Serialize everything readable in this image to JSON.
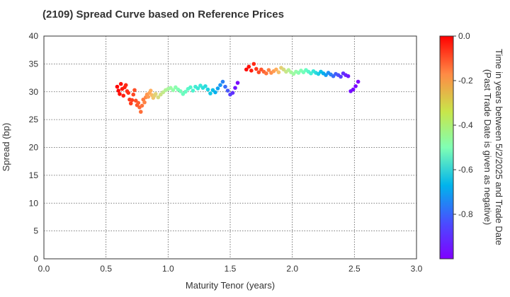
{
  "chart_data": {
    "type": "scatter",
    "title": "(2109)   Spread Curve based on Reference Prices",
    "xlabel": "Maturity Tenor (years)",
    "ylabel": "Spread (bp)",
    "xlim": [
      0.0,
      3.0
    ],
    "ylim": [
      0,
      40
    ],
    "xticks": [
      "0.0",
      "0.5",
      "1.0",
      "1.5",
      "2.0",
      "2.5",
      "3.0"
    ],
    "yticks": [
      "0",
      "5",
      "10",
      "15",
      "20",
      "25",
      "30",
      "35",
      "40"
    ],
    "grid": true,
    "colorbar": {
      "label_line1": "Time in years between 5/2/2025 and Trade Date",
      "label_line2": "(Past Trade Date is given as negative)",
      "range": [
        -1.0,
        0.0
      ],
      "ticks": [
        "0.0",
        "-0.2",
        "-0.4",
        "-0.6",
        "-0.8"
      ],
      "colormap": "rainbow"
    },
    "series": [
      {
        "points": [
          [
            0.59,
            30.9,
            0.0
          ],
          [
            0.6,
            30.2,
            -0.01
          ],
          [
            0.61,
            29.6,
            -0.02
          ],
          [
            0.62,
            31.4,
            -0.02
          ],
          [
            0.63,
            30.5,
            -0.03
          ],
          [
            0.64,
            29.3,
            -0.04
          ],
          [
            0.65,
            30.8,
            -0.04
          ],
          [
            0.66,
            31.2,
            -0.05
          ],
          [
            0.67,
            30.1,
            -0.06
          ],
          [
            0.68,
            29.8,
            -0.06
          ],
          [
            0.69,
            28.6,
            -0.07
          ],
          [
            0.7,
            27.9,
            -0.08
          ],
          [
            0.71,
            28.5,
            -0.08
          ],
          [
            0.72,
            29.5,
            -0.09
          ],
          [
            0.73,
            30.3,
            -0.1
          ],
          [
            0.74,
            28.4,
            -0.1
          ],
          [
            0.75,
            27.6,
            -0.11
          ],
          [
            0.76,
            28.0,
            -0.12
          ],
          [
            0.77,
            27.2,
            -0.13
          ],
          [
            0.78,
            26.4,
            -0.14
          ],
          [
            0.79,
            27.5,
            -0.15
          ],
          [
            0.8,
            28.6,
            -0.16
          ],
          [
            0.81,
            28.1,
            -0.17
          ],
          [
            0.82,
            29.0,
            -0.18
          ],
          [
            0.83,
            29.5,
            -0.2
          ],
          [
            0.84,
            29.1,
            -0.21
          ],
          [
            0.85,
            29.8,
            -0.22
          ],
          [
            0.86,
            30.2,
            -0.24
          ],
          [
            0.87,
            29.4,
            -0.26
          ],
          [
            0.88,
            28.9,
            -0.28
          ],
          [
            0.89,
            29.3,
            -0.3
          ],
          [
            0.9,
            29.6,
            -0.31
          ],
          [
            0.92,
            29.0,
            -0.33
          ],
          [
            0.94,
            29.5,
            -0.35
          ],
          [
            0.96,
            29.9,
            -0.37
          ],
          [
            0.98,
            30.3,
            -0.4
          ],
          [
            1.0,
            30.5,
            -0.42
          ],
          [
            1.02,
            30.7,
            -0.44
          ],
          [
            1.04,
            30.3,
            -0.46
          ],
          [
            1.06,
            30.8,
            -0.48
          ],
          [
            1.08,
            30.4,
            -0.5
          ],
          [
            1.1,
            30.1,
            -0.52
          ],
          [
            1.12,
            29.6,
            -0.54
          ],
          [
            1.14,
            30.0,
            -0.55
          ],
          [
            1.16,
            30.5,
            -0.57
          ],
          [
            1.18,
            30.8,
            -0.59
          ],
          [
            1.2,
            30.2,
            -0.6
          ],
          [
            1.22,
            30.9,
            -0.62
          ],
          [
            1.24,
            30.6,
            -0.63
          ],
          [
            1.26,
            31.1,
            -0.64
          ],
          [
            1.28,
            30.7,
            -0.66
          ],
          [
            1.3,
            31.0,
            -0.67
          ],
          [
            1.32,
            30.4,
            -0.69
          ],
          [
            1.34,
            29.7,
            -0.71
          ],
          [
            1.36,
            30.3,
            -0.73
          ],
          [
            1.38,
            29.9,
            -0.76
          ],
          [
            1.4,
            30.6,
            -0.78
          ],
          [
            1.42,
            31.2,
            -0.8
          ],
          [
            1.44,
            31.8,
            -0.83
          ],
          [
            1.46,
            30.9,
            -0.86
          ],
          [
            1.48,
            30.2,
            -0.89
          ],
          [
            1.5,
            29.5,
            -0.92
          ],
          [
            1.52,
            29.8,
            -0.94
          ],
          [
            1.54,
            30.7,
            -0.97
          ],
          [
            1.56,
            31.6,
            -0.99
          ],
          [
            1.63,
            34.0,
            -0.01
          ],
          [
            1.65,
            34.5,
            -0.02
          ],
          [
            1.67,
            33.8,
            -0.04
          ],
          [
            1.69,
            35.0,
            -0.05
          ],
          [
            1.71,
            34.1,
            -0.07
          ],
          [
            1.73,
            33.5,
            -0.09
          ],
          [
            1.75,
            34.0,
            -0.11
          ],
          [
            1.77,
            33.6,
            -0.13
          ],
          [
            1.79,
            33.3,
            -0.15
          ],
          [
            1.81,
            33.9,
            -0.17
          ],
          [
            1.83,
            33.4,
            -0.19
          ],
          [
            1.85,
            33.7,
            -0.21
          ],
          [
            1.87,
            34.0,
            -0.24
          ],
          [
            1.89,
            33.5,
            -0.27
          ],
          [
            1.91,
            34.3,
            -0.3
          ],
          [
            1.93,
            34.0,
            -0.33
          ],
          [
            1.95,
            33.6,
            -0.36
          ],
          [
            1.97,
            33.9,
            -0.39
          ],
          [
            1.99,
            33.5,
            -0.42
          ],
          [
            2.01,
            33.2,
            -0.44
          ],
          [
            2.03,
            33.6,
            -0.46
          ],
          [
            2.05,
            33.4,
            -0.48
          ],
          [
            2.07,
            33.8,
            -0.5
          ],
          [
            2.09,
            33.5,
            -0.52
          ],
          [
            2.11,
            33.9,
            -0.55
          ],
          [
            2.13,
            33.6,
            -0.58
          ],
          [
            2.15,
            33.3,
            -0.61
          ],
          [
            2.17,
            33.7,
            -0.64
          ],
          [
            2.19,
            33.4,
            -0.67
          ],
          [
            2.21,
            33.2,
            -0.7
          ],
          [
            2.23,
            33.6,
            -0.73
          ],
          [
            2.25,
            33.3,
            -0.76
          ],
          [
            2.27,
            33.0,
            -0.79
          ],
          [
            2.29,
            33.4,
            -0.81
          ],
          [
            2.31,
            33.1,
            -0.83
          ],
          [
            2.33,
            32.8,
            -0.86
          ],
          [
            2.35,
            33.2,
            -0.88
          ],
          [
            2.37,
            33.0,
            -0.9
          ],
          [
            2.39,
            32.7,
            -0.92
          ],
          [
            2.41,
            33.3,
            -0.94
          ],
          [
            2.43,
            33.0,
            -0.96
          ],
          [
            2.45,
            32.8,
            -0.97
          ],
          [
            2.47,
            30.1,
            -0.98
          ],
          [
            2.49,
            30.4,
            -0.99
          ],
          [
            2.51,
            31.0,
            -0.99
          ],
          [
            2.53,
            31.8,
            -1.0
          ]
        ]
      }
    ]
  }
}
